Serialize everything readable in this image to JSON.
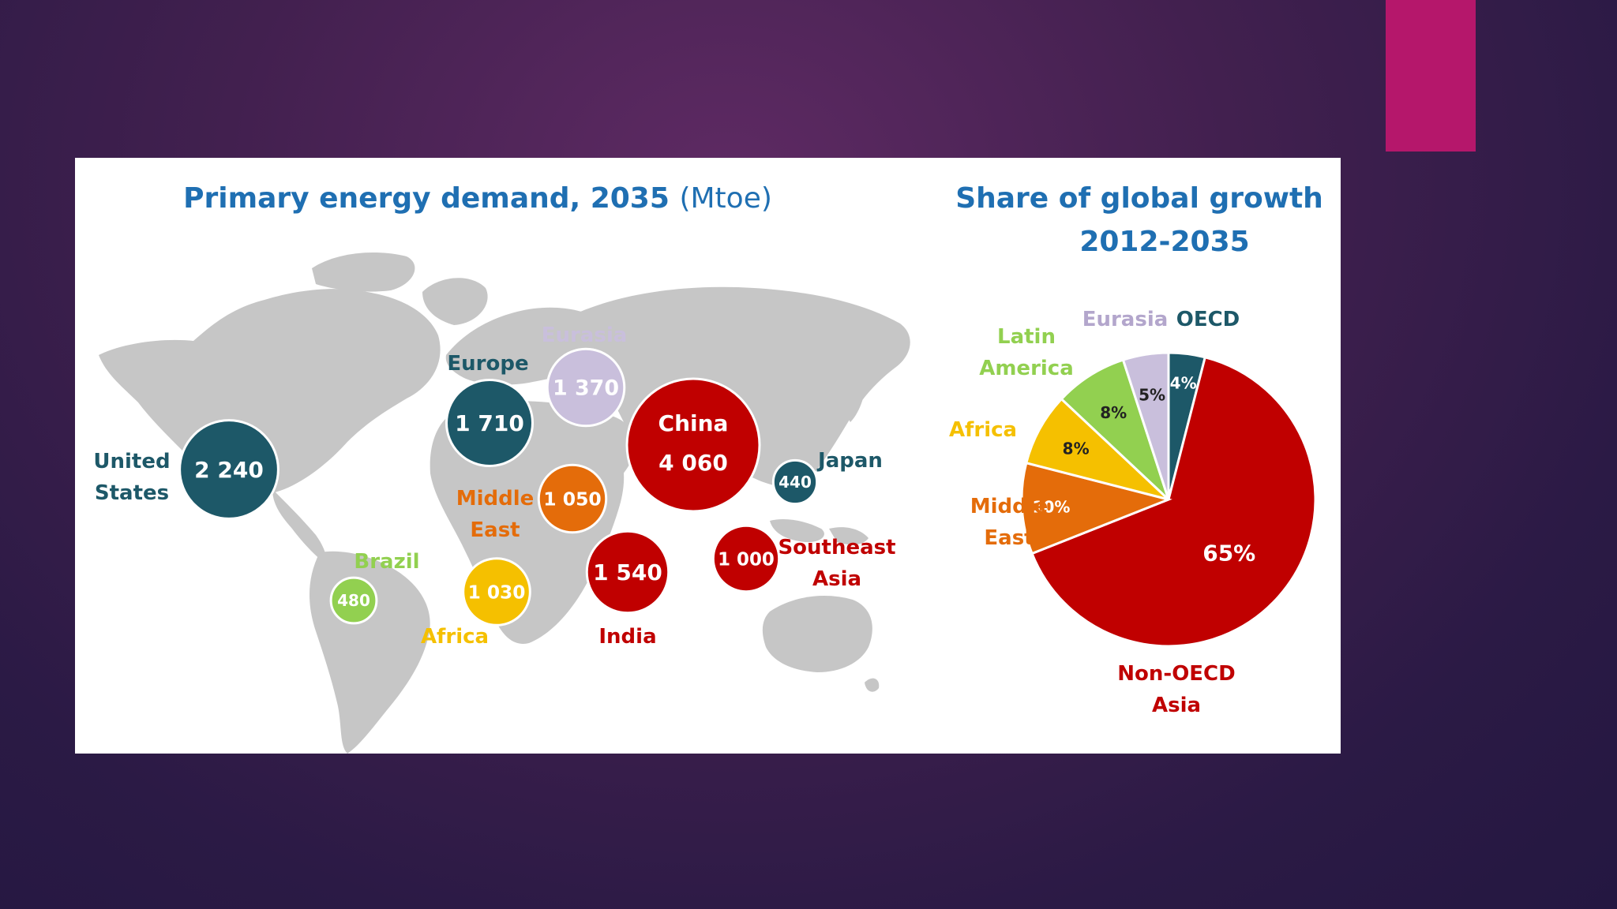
{
  "colors": {
    "accent": "#b5176b",
    "map": "#c6c6c6",
    "oecd": "#1d5868",
    "non_oecd_asia": "#c00000",
    "middle_east": "#e46c0a",
    "africa": "#f5c000",
    "latin_america": "#92d050",
    "eurasia": "#c9bfdc",
    "title": "#1f6fb2"
  },
  "chart_data": [
    {
      "type": "bubble-map",
      "title": "Primary energy demand, 2035",
      "title_unit": "(Mtoe)",
      "points": [
        {
          "region": "United States",
          "label_lines": [
            "United",
            "States"
          ],
          "value": 2240,
          "value_text": "2 240",
          "group": "oecd"
        },
        {
          "region": "Europe",
          "label_lines": [
            "Europe"
          ],
          "value": 1710,
          "value_text": "1 710",
          "group": "oecd"
        },
        {
          "region": "Eurasia",
          "label_lines": [
            "Eurasia"
          ],
          "value": 1370,
          "value_text": "1 370",
          "group": "eurasia"
        },
        {
          "region": "China",
          "label_lines": [
            "China"
          ],
          "value": 4060,
          "value_text": "4 060",
          "group": "non_oecd_asia"
        },
        {
          "region": "Japan",
          "label_lines": [
            "Japan"
          ],
          "value": 440,
          "value_text": "440",
          "group": "oecd"
        },
        {
          "region": "Middle East",
          "label_lines": [
            "Middle",
            "East"
          ],
          "value": 1050,
          "value_text": "1 050",
          "group": "middle_east"
        },
        {
          "region": "India",
          "label_lines": [
            "India"
          ],
          "value": 1540,
          "value_text": "1 540",
          "group": "non_oecd_asia"
        },
        {
          "region": "Southeast Asia",
          "label_lines": [
            "Southeast",
            "Asia"
          ],
          "value": 1000,
          "value_text": "1 000",
          "group": "non_oecd_asia"
        },
        {
          "region": "Africa",
          "label_lines": [
            "Africa"
          ],
          "value": 1030,
          "value_text": "1 030",
          "group": "africa"
        },
        {
          "region": "Brazil",
          "label_lines": [
            "Brazil"
          ],
          "value": 480,
          "value_text": "480",
          "group": "latin_america"
        }
      ]
    },
    {
      "type": "pie",
      "title_lines": [
        "Share of global growth",
        "2012-2035"
      ],
      "slices": [
        {
          "name": "OECD",
          "label_lines": [
            "OECD"
          ],
          "value": 4,
          "pct_text": "4%",
          "group": "oecd"
        },
        {
          "name": "Non-OECD Asia",
          "label_lines": [
            "Non-OECD",
            "Asia"
          ],
          "value": 65,
          "pct_text": "65%",
          "group": "non_oecd_asia"
        },
        {
          "name": "Middle East",
          "label_lines": [
            "Middle",
            "East"
          ],
          "value": 10,
          "pct_text": "10%",
          "group": "middle_east"
        },
        {
          "name": "Africa",
          "label_lines": [
            "Africa"
          ],
          "value": 8,
          "pct_text": "8%",
          "group": "africa"
        },
        {
          "name": "Latin America",
          "label_lines": [
            "Latin",
            "America"
          ],
          "value": 8,
          "pct_text": "8%",
          "group": "latin_america"
        },
        {
          "name": "Eurasia",
          "label_lines": [
            "Eurasia"
          ],
          "value": 5,
          "pct_text": "5%",
          "group": "eurasia"
        }
      ]
    }
  ]
}
